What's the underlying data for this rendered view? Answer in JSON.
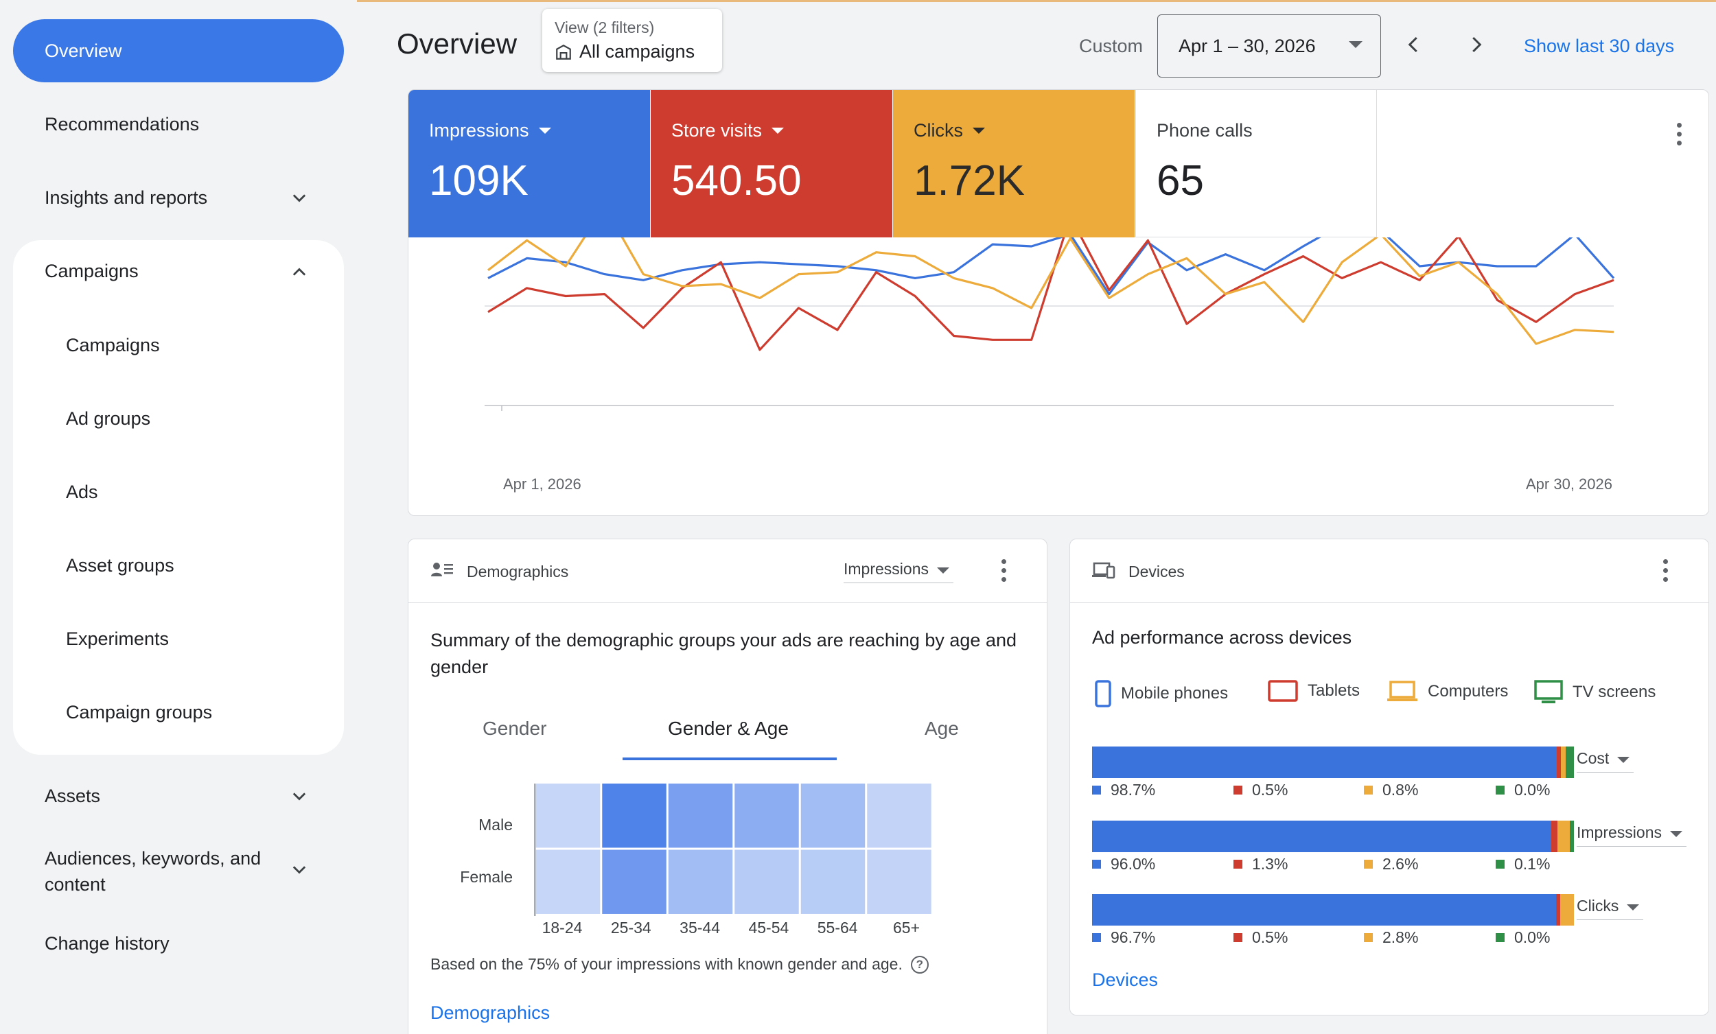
{
  "sidebar": {
    "overview": "Overview",
    "recommendations": "Recommendations",
    "insights": "Insights and reports",
    "campaigns_group": "Campaigns",
    "campaign_items": [
      "Campaigns",
      "Ad groups",
      "Ads",
      "Asset groups",
      "Experiments",
      "Campaign groups"
    ],
    "assets": "Assets",
    "audiences_line1": "Audiences, keywords, and",
    "audiences_line2": "content",
    "change_history": "Change history"
  },
  "header": {
    "title": "Overview",
    "view_filter_top": "View (2 filters)",
    "view_filter_bottom": "All campaigns",
    "custom_label": "Custom",
    "date_range": "Apr 1 – 30, 2026",
    "show_last": "Show last 30 days"
  },
  "metrics": {
    "impressions": {
      "label": "Impressions",
      "value": "109K",
      "color": "#3b73dd"
    },
    "store_visits": {
      "label": "Store visits",
      "value": "540.50",
      "color": "#cd3c2f"
    },
    "clicks": {
      "label": "Clicks",
      "value": "1.72K",
      "color": "#ecab3a"
    },
    "phone_calls": {
      "label": "Phone calls",
      "value": "65"
    }
  },
  "chart_data": {
    "type": "line",
    "x_start_label": "Apr 1, 2026",
    "x_end_label": "Apr 30, 2026",
    "x": [
      "Apr 1",
      "Apr 2",
      "Apr 3",
      "Apr 4",
      "Apr 5",
      "Apr 6",
      "Apr 7",
      "Apr 8",
      "Apr 9",
      "Apr 10",
      "Apr 11",
      "Apr 12",
      "Apr 13",
      "Apr 14",
      "Apr 15",
      "Apr 16",
      "Apr 17",
      "Apr 18",
      "Apr 19",
      "Apr 20",
      "Apr 21",
      "Apr 22",
      "Apr 23",
      "Apr 24",
      "Apr 25",
      "Apr 26",
      "Apr 27",
      "Apr 28",
      "Apr 29",
      "Apr 30"
    ],
    "grid": true,
    "legend": "none",
    "series": [
      {
        "name": "Impressions",
        "color": "#3b73dd",
        "values": [
          0.64,
          0.74,
          0.72,
          0.66,
          0.63,
          0.68,
          0.71,
          0.72,
          0.71,
          0.7,
          0.68,
          0.64,
          0.67,
          0.81,
          0.8,
          0.86,
          0.56,
          0.82,
          0.68,
          0.76,
          0.68,
          0.8,
          0.91,
          0.88,
          0.7,
          0.72,
          0.7,
          0.7,
          0.86,
          0.64
        ]
      },
      {
        "name": "Store visits",
        "color": "#cd3c2f",
        "values": [
          0.47,
          0.59,
          0.55,
          0.56,
          0.39,
          0.59,
          0.72,
          0.28,
          0.49,
          0.38,
          0.67,
          0.55,
          0.35,
          0.33,
          0.33,
          0.95,
          0.58,
          0.83,
          0.41,
          0.56,
          0.66,
          0.75,
          0.64,
          0.72,
          0.63,
          0.85,
          0.53,
          0.42,
          0.56,
          0.63
        ]
      },
      {
        "name": "Clicks",
        "color": "#ecab3a",
        "values": [
          0.68,
          0.83,
          0.7,
          1.0,
          0.66,
          0.6,
          0.61,
          0.54,
          0.66,
          0.67,
          0.77,
          0.75,
          0.64,
          0.59,
          0.49,
          0.84,
          0.54,
          0.66,
          0.74,
          0.56,
          0.62,
          0.42,
          0.72,
          0.86,
          0.65,
          0.72,
          0.56,
          0.31,
          0.38,
          0.37
        ]
      }
    ]
  },
  "demographics": {
    "title": "Demographics",
    "metric": "Impressions",
    "summary": "Summary of the demographic groups your ads are reaching by age and gender",
    "tabs": [
      "Gender",
      "Gender & Age",
      "Age"
    ],
    "rows": [
      "Male",
      "Female"
    ],
    "ages": [
      "18-24",
      "25-34",
      "35-44",
      "45-54",
      "55-64",
      "65+"
    ],
    "heatmap": [
      [
        "#c5d6f8",
        "#4f83ea",
        "#7a9ff0",
        "#8cadf2",
        "#a2bdf4",
        "#c3d3f8"
      ],
      [
        "#c5d6f8",
        "#7098ee",
        "#a2bdf4",
        "#b6cbf6",
        "#b8cdf6",
        "#c3d3f8"
      ]
    ],
    "note": "Based on the 75% of your impressions with known gender and age.",
    "link": "Demographics"
  },
  "devices": {
    "title": "Devices",
    "summary": "Ad performance across devices",
    "legend": [
      {
        "label": "Mobile phones",
        "color": "#3b73dd"
      },
      {
        "label": "Tablets",
        "color": "#cd3c2f"
      },
      {
        "label": "Computers",
        "color": "#ecab3a"
      },
      {
        "label": "TV screens",
        "color": "#2f8f46"
      }
    ],
    "bars": [
      {
        "metric": "Cost",
        "pcts": [
          "98.7%",
          "0.5%",
          "0.8%",
          "0.0%"
        ],
        "shares": [
          0.987,
          0.005,
          0.008,
          0.0
        ]
      },
      {
        "metric": "Impressions",
        "pcts": [
          "96.0%",
          "1.3%",
          "2.6%",
          "0.1%"
        ],
        "shares": [
          0.96,
          0.013,
          0.026,
          0.001
        ]
      },
      {
        "metric": "Clicks",
        "pcts": [
          "96.7%",
          "0.5%",
          "2.8%",
          "0.0%"
        ],
        "shares": [
          0.967,
          0.005,
          0.028,
          0.0
        ]
      }
    ],
    "link": "Devices"
  }
}
